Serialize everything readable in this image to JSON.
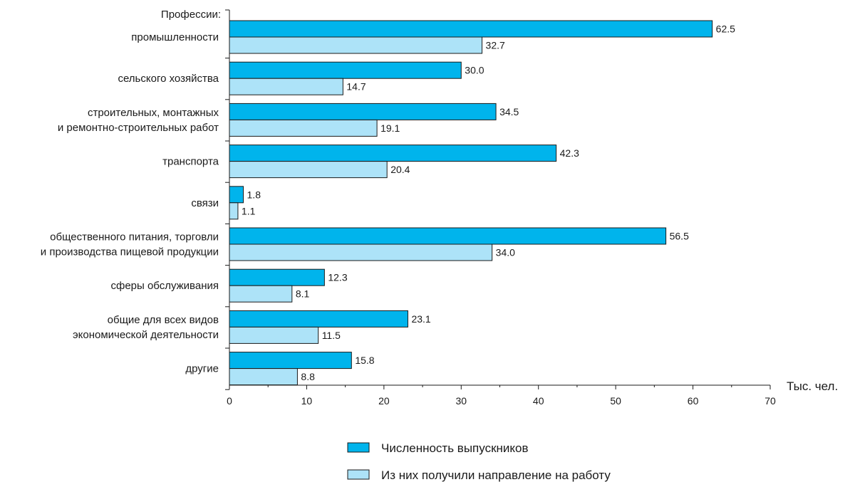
{
  "chart_data": {
    "type": "bar",
    "orientation": "horizontal",
    "group_header": "Профессии:",
    "categories": [
      [
        "промышленности"
      ],
      [
        "сельского хозяйства"
      ],
      [
        "строительных, монтажных",
        "и ремонтно-строительных работ"
      ],
      [
        "транспорта"
      ],
      [
        "связи"
      ],
      [
        "общественного питания, торговли",
        "и производства пищевой продукции"
      ],
      [
        "сферы обслуживания"
      ],
      [
        "общие  для всех видов",
        "экономической деятельности"
      ],
      [
        "другие"
      ]
    ],
    "series": [
      {
        "name": "Численность выпускников",
        "color": "#00b4ec",
        "values": [
          62.5,
          30.0,
          34.5,
          42.3,
          1.8,
          56.5,
          12.3,
          23.1,
          15.8
        ],
        "labels": [
          "62.5",
          "30.0",
          "34.5",
          "42.3",
          "1.8",
          "56.5",
          "12.3",
          "23.1",
          "15.8"
        ]
      },
      {
        "name": "Из них получили направление на работу",
        "color": "#ade3f8",
        "values": [
          32.7,
          14.7,
          19.1,
          20.4,
          1.1,
          34.0,
          8.1,
          11.5,
          8.8
        ],
        "labels": [
          "32.7",
          "14.7",
          "19.1",
          "20.4",
          "1.1",
          "34.0",
          "8.1",
          "11.5",
          "8.8"
        ]
      }
    ],
    "xlim": [
      0,
      70
    ],
    "xticks": [
      0,
      10,
      20,
      30,
      40,
      50,
      60,
      70
    ],
    "xunit": "Тыс. чел.",
    "grid": false,
    "legend_position": "bottom"
  }
}
